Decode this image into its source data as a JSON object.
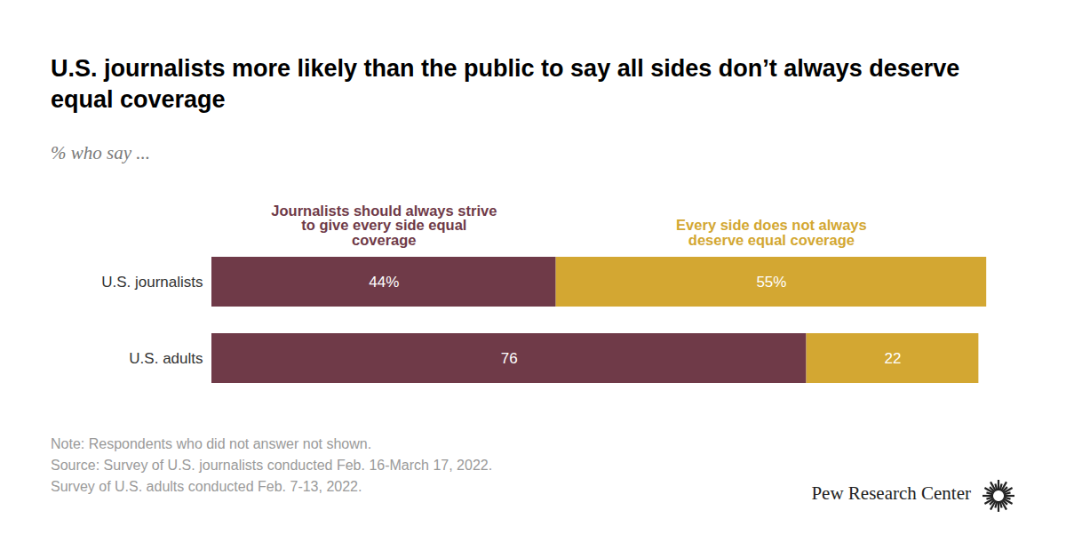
{
  "chart_data": {
    "type": "bar",
    "orientation": "horizontal",
    "stacked": true,
    "title": "U.S. journalists more likely than the public to say all sides don’t always deserve equal coverage",
    "subtitle": "% who say ...",
    "categories": [
      "U.S. journalists",
      "U.S. adults"
    ],
    "series": [
      {
        "name": "Journalists should always strive to give every side equal coverage",
        "color": "#6f3a48",
        "values": [
          44,
          76
        ],
        "value_labels": [
          "44%",
          "76"
        ]
      },
      {
        "name": "Every side does not always deserve equal coverage",
        "color": "#d3a732",
        "values": [
          55,
          22
        ],
        "value_labels": [
          "55%",
          "22"
        ]
      }
    ],
    "xlim": [
      0,
      100
    ],
    "tick_labels": "y",
    "data_labels": true,
    "notes": [
      "Note: Respondents who did not answer not shown.",
      "Source: Survey of U.S. journalists conducted Feb. 16-March 17, 2022.",
      "Survey of U.S. adults conducted Feb. 7-13, 2022."
    ],
    "credit": "Pew Research Center"
  }
}
